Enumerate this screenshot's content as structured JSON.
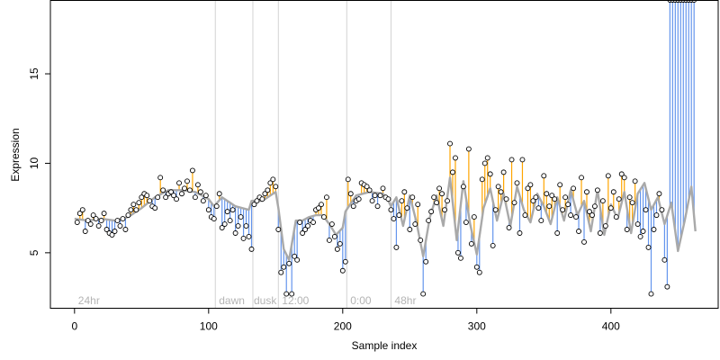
{
  "chart_data": {
    "type": "line",
    "xlabel": "Sample index",
    "ylabel": "Expression",
    "xlim": [
      -18,
      480
    ],
    "ylim": [
      1.9,
      19.1
    ],
    "x_ticks": [
      0,
      100,
      200,
      300,
      400
    ],
    "y_ticks": [
      5,
      10,
      15
    ],
    "grid": false,
    "colors": {
      "fit_line": "#a9a9a9",
      "above_segment": "#ffa500",
      "below_segment": "#6495ed",
      "point_fill": "#ffffff",
      "point_stroke": "#000000",
      "region_line": "#d3d3d3",
      "region_label": "#b4b4b4"
    },
    "region_boundaries": [
      105,
      133,
      152,
      203,
      236
    ],
    "region_labels": [
      {
        "x": 2,
        "label": "24hr"
      },
      {
        "x": 107,
        "label": "dawn"
      },
      {
        "x": 133,
        "label": "dusk"
      },
      {
        "x": 154,
        "label": "12:00"
      },
      {
        "x": 205,
        "label": "0:00"
      },
      {
        "x": 238,
        "label": "48hr"
      }
    ],
    "fit_curve": {
      "x": [
        0,
        10,
        20,
        30,
        40,
        50,
        60,
        70,
        80,
        90,
        100,
        104,
        110,
        120,
        130,
        132,
        140,
        150,
        152,
        156,
        160,
        165,
        170,
        175,
        180,
        185,
        190,
        195,
        200,
        202,
        210,
        220,
        230,
        234,
        236,
        240,
        245,
        250,
        255,
        260,
        265,
        270,
        275,
        280,
        285,
        290,
        295,
        300,
        305,
        310,
        315,
        320,
        325,
        330,
        335,
        340,
        345,
        350,
        355,
        360,
        365,
        370,
        375,
        380,
        385,
        390,
        395,
        400,
        405,
        410,
        415,
        420,
        425,
        430,
        435,
        440,
        445,
        450,
        455,
        460,
        463
      ],
      "y": [
        6.9,
        6.8,
        6.9,
        6.8,
        7.0,
        7.5,
        8.1,
        8.5,
        8.5,
        8.4,
        8.0,
        7.6,
        8.1,
        7.6,
        7.4,
        7.9,
        7.9,
        8.4,
        7.5,
        5.2,
        4.6,
        6.8,
        6.8,
        7.0,
        7.1,
        7.1,
        6.6,
        6.0,
        6.4,
        7.3,
        8.2,
        8.4,
        8.3,
        7.9,
        7.6,
        8.1,
        6.5,
        8.2,
        6.7,
        4.8,
        7.0,
        8.2,
        6.5,
        9.2,
        5.7,
        9.0,
        6.6,
        4.9,
        7.5,
        8.6,
        6.8,
        8.3,
        6.5,
        8.7,
        7.4,
        6.7,
        8.3,
        7.6,
        6.6,
        8.1,
        6.8,
        8.5,
        7.1,
        7.9,
        6.2,
        8.5,
        6.0,
        7.7,
        6.9,
        8.4,
        6.1,
        8.3,
        8.9,
        7.4,
        8.1,
        6.6,
        7.8,
        5.1,
        6.8,
        8.7,
        6.2
      ]
    },
    "points_x": [
      2,
      4,
      6,
      8,
      10,
      12,
      14,
      16,
      18,
      20,
      22,
      24,
      26,
      28,
      30,
      32,
      34,
      36,
      38,
      40,
      42,
      44,
      46,
      48,
      50,
      52,
      54,
      56,
      58,
      60,
      62,
      64,
      66,
      68,
      70,
      72,
      74,
      76,
      78,
      80,
      82,
      84,
      86,
      88,
      90,
      92,
      94,
      96,
      98,
      100,
      102,
      104,
      106,
      108,
      110,
      112,
      114,
      116,
      118,
      120,
      122,
      124,
      126,
      128,
      130,
      132,
      134,
      136,
      138,
      140,
      142,
      144,
      146,
      148,
      150,
      152,
      154,
      156,
      158,
      160,
      162,
      164,
      166,
      168,
      170,
      172,
      174,
      176,
      178,
      180,
      182,
      184,
      186,
      188,
      190,
      192,
      194,
      196,
      198,
      200,
      202,
      204,
      206,
      208,
      210,
      212,
      214,
      216,
      218,
      220,
      222,
      224,
      226,
      228,
      230,
      232,
      234,
      236,
      238,
      240,
      242,
      244,
      246,
      248,
      250,
      252,
      254,
      256,
      258,
      260,
      262,
      264,
      266,
      268,
      270,
      272,
      274,
      276,
      278,
      280,
      282,
      284,
      286,
      288,
      290,
      292,
      294,
      296,
      298,
      300,
      302,
      304,
      306,
      308,
      310,
      312,
      314,
      316,
      318,
      320,
      322,
      324,
      326,
      328,
      330,
      332,
      334,
      336,
      338,
      340,
      342,
      344,
      346,
      348,
      350,
      352,
      354,
      356,
      358,
      360,
      362,
      364,
      366,
      368,
      370,
      372,
      374,
      376,
      378,
      380,
      382,
      384,
      386,
      388,
      390,
      392,
      394,
      396,
      398,
      400,
      402,
      404,
      406,
      408,
      410,
      412,
      414,
      416,
      418,
      420,
      422,
      424,
      426,
      428,
      430,
      432,
      434,
      436,
      438,
      440,
      442,
      444,
      446,
      448,
      450,
      452,
      454,
      456,
      458,
      460,
      462
    ],
    "points_y": [
      6.7,
      7.2,
      7.4,
      6.2,
      6.8,
      6.6,
      7.1,
      6.9,
      6.5,
      6.8,
      7.2,
      6.3,
      6.1,
      6.0,
      6.2,
      6.8,
      6.5,
      6.9,
      6.3,
      7.1,
      7.4,
      7.7,
      7.4,
      7.8,
      8.1,
      8.3,
      8.2,
      7.9,
      7.6,
      7.5,
      8.1,
      9.2,
      8.5,
      8.1,
      8.3,
      8.4,
      8.2,
      8.0,
      8.9,
      8.3,
      8.6,
      9.0,
      8.5,
      9.6,
      8.1,
      8.8,
      8.4,
      7.9,
      8.2,
      7.4,
      7.0,
      6.9,
      7.6,
      8.3,
      6.4,
      6.6,
      7.3,
      6.8,
      7.4,
      6.1,
      6.5,
      7.0,
      5.8,
      6.5,
      5.9,
      5.2,
      7.7,
      7.9,
      8.1,
      8.0,
      8.3,
      8.5,
      8.9,
      9.1,
      8.7,
      6.3,
      3.9,
      4.2,
      2.7,
      4.4,
      2.7,
      4.8,
      4.6,
      6.7,
      6.1,
      6.3,
      6.5,
      6.8,
      6.7,
      7.4,
      7.5,
      7.7,
      7.0,
      8.1,
      5.7,
      6.6,
      5.9,
      5.2,
      5.5,
      4.0,
      4.5,
      9.1,
      8.3,
      7.6,
      7.9,
      8.0,
      8.9,
      8.8,
      8.7,
      8.5,
      7.9,
      8.2,
      7.6,
      8.2,
      8.6,
      8.1,
      8.0,
      7.4,
      6.9,
      5.3,
      7.1,
      7.9,
      8.4,
      7.5,
      6.3,
      8.1,
      6.6,
      7.7,
      5.7,
      2.7,
      4.5,
      6.8,
      7.3,
      8.1,
      7.8,
      8.6,
      8.3,
      7.4,
      7.9,
      11.1,
      9.5,
      10.3,
      5.0,
      4.7,
      8.7,
      6.7,
      10.8,
      5.5,
      7.0,
      4.2,
      3.9,
      9.1,
      10.0,
      10.3,
      9.4,
      5.4,
      7.4,
      8.7,
      8.4,
      9.5,
      8.0,
      6.4,
      10.2,
      7.8,
      8.9,
      6.1,
      10.2,
      7.1,
      8.6,
      8.8,
      7.9,
      8.1,
      7.5,
      6.8,
      9.3,
      8.3,
      7.6,
      8.2,
      8.0,
      6.1,
      8.8,
      7.4,
      8.1,
      7.7,
      7.1,
      8.6,
      7.0,
      6.2,
      9.2,
      5.6,
      8.4,
      7.3,
      7.1,
      7.6,
      8.5,
      6.1,
      7.9,
      6.5,
      9.3,
      7.5,
      8.4,
      7.0,
      8.0,
      9.4,
      9.2,
      6.3,
      8.1,
      7.8,
      9.0,
      6.6,
      5.9,
      6.2,
      7.4,
      5.3,
      2.7,
      6.3,
      7.1,
      8.3,
      7.4,
      4.6,
      3.1
    ]
  }
}
